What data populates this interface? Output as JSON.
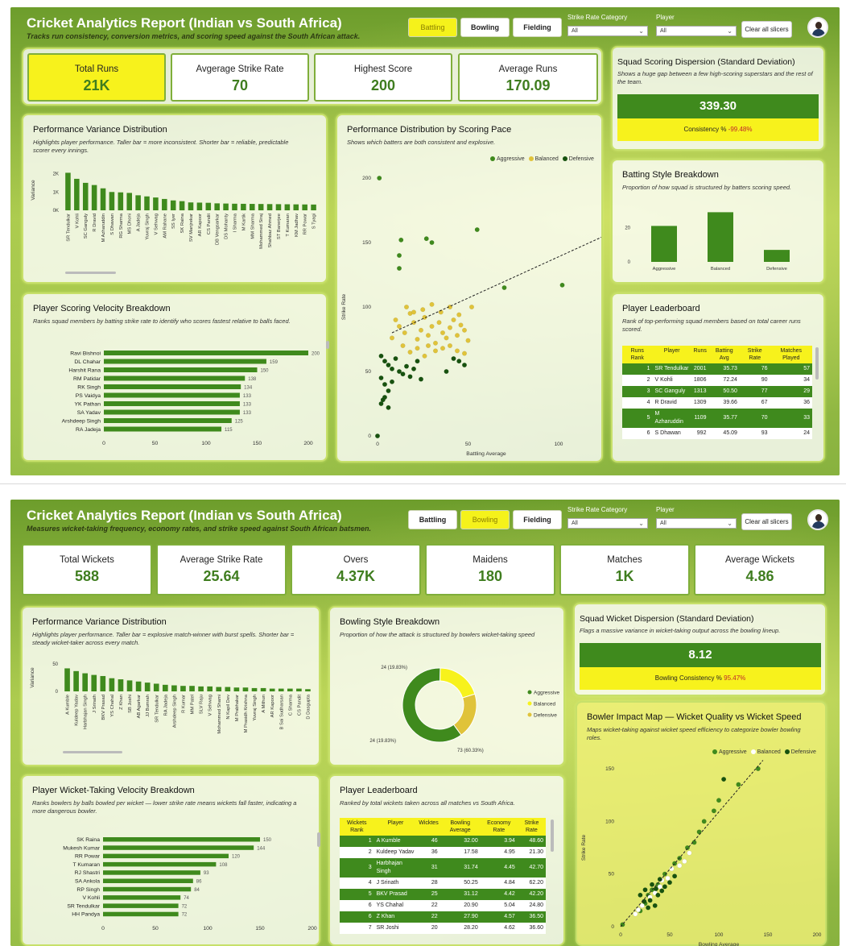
{
  "common": {
    "title": "Cricket Analytics Report (Indian vs South Africa)",
    "tabs": [
      "Battling",
      "Bowling",
      "Fielding"
    ],
    "slicer1_label": "Strike Rate Category",
    "slicer2_label": "Player",
    "slicer_value": "All",
    "clear_label": "Clear all slicers",
    "colors": {
      "green": "#3f8a1d",
      "yellow": "#f7f21c",
      "dark": "#17520f",
      "gold": "#e0c33a"
    }
  },
  "batting": {
    "subtitle": "Tracks run consistency, conversion metrics, and scoring speed against the South African attack.",
    "active_tab": "Battling",
    "kpis": [
      {
        "label": "Total Runs",
        "value": "21K"
      },
      {
        "label": "Avgerage Strike Rate",
        "value": "70"
      },
      {
        "label": "Highest Score",
        "value": "200"
      },
      {
        "label": "Average Runs",
        "value": "170.09"
      }
    ],
    "dispersion": {
      "title": "Squad Scoring Dispersion (Standard Deviation)",
      "subtitle": "Shows a huge gap between a few high-scoring superstars and the rest of the team.",
      "value": "339.30",
      "sub_label": "Consistency %",
      "sub_value": "-99.48%"
    },
    "variance": {
      "title": "Performance Variance Distribution",
      "subtitle": "Highlights player performance. Taller bar = more inconsistent. Shorter bar = reliable, predictable scorer every innings.",
      "ylabel": "Variance",
      "yticks": [
        "2K",
        "1K",
        "0K"
      ]
    },
    "velocity": {
      "title": "Player Scoring Velocity Breakdown",
      "subtitle": "Ranks squad members by batting strike rate to identify who scores fastest relative to balls faced.",
      "xticks": [
        "0",
        "50",
        "100",
        "150",
        "200"
      ]
    },
    "scatter": {
      "title": "Performance Distribution by Scoring Pace",
      "subtitle": "Shows which batters are both consistent and explosive.",
      "xlabel": "Battling Average",
      "ylabel": "Strike Rate",
      "legend": [
        "Aggressive",
        "Balanced",
        "Defensive"
      ],
      "xticks": [
        "0",
        "50",
        "100"
      ],
      "yticks": [
        "200",
        "150",
        "100",
        "50",
        "0"
      ]
    },
    "style": {
      "title": "Batting Style Breakdown",
      "subtitle": "Proportion of how squad is structured by batters scoring speed.",
      "yticks": [
        "20",
        "0"
      ]
    },
    "leaderboard": {
      "title": "Player Leaderboard",
      "subtitle": "Rank of top-performing squad members based on total career runs scored.",
      "headers": [
        "Runs Rank",
        "Player",
        "Runs",
        "Batting Avg",
        "Strike Rate",
        "Matches Played"
      ],
      "rows": [
        [
          "1",
          "SR Tendulkar",
          "2001",
          "35.73",
          "76",
          "57"
        ],
        [
          "2",
          "V Kohli",
          "1806",
          "72.24",
          "90",
          "34"
        ],
        [
          "3",
          "SC Ganguly",
          "1313",
          "50.50",
          "77",
          "29"
        ],
        [
          "4",
          "R Dravid",
          "1309",
          "39.66",
          "67",
          "36"
        ],
        [
          "5",
          "M Azharuddin",
          "1109",
          "35.77",
          "70",
          "33"
        ],
        [
          "6",
          "S Dhawan",
          "992",
          "45.09",
          "93",
          "24"
        ]
      ]
    }
  },
  "bowling": {
    "subtitle": "Measures wicket-taking frequency, economy rates, and strike speed against South African batsmen.",
    "active_tab": "Bowling",
    "kpis": [
      {
        "label": "Total Wickets",
        "value": "588"
      },
      {
        "label": "Average Strike Rate",
        "value": "25.64"
      },
      {
        "label": "Overs",
        "value": "4.37K"
      },
      {
        "label": "Maidens",
        "value": "180"
      },
      {
        "label": "Matches",
        "value": "1K"
      },
      {
        "label": "Average Wickets",
        "value": "4.86"
      }
    ],
    "dispersion": {
      "title": "Squad Wicket Dispersion (Standard Deviation)",
      "subtitle": "Flags a massive variance in wicket-taking output across the bowling lineup.",
      "value": "8.12",
      "sub_label": "Bowling Consistency %",
      "sub_value": "95.47%"
    },
    "variance": {
      "title": "Performance Variance Distribution",
      "subtitle": "Highlights player performance. Taller bar = explosive match-winner with burst spells. Shorter bar = steady wicket-taker across every match.",
      "ylabel": "Variance",
      "yticks": [
        "50",
        "0"
      ]
    },
    "velocity": {
      "title": "Player Wicket-Taking Velocity Breakdown",
      "subtitle": "Ranks bowlers by balls bowled per wicket — lower strike rate means wickets fall faster, indicating a more dangerous bowler.",
      "xticks": [
        "0",
        "50",
        "100",
        "150",
        "200"
      ]
    },
    "style": {
      "title": "Bowling Style Breakdown",
      "subtitle": "Proportion of how the attack is structured by bowlers wicket-taking speed",
      "legend": [
        "Aggressive",
        "Balanced",
        "Defensive"
      ],
      "labels": [
        "24 (19.83%)",
        "24 (19.83%)",
        "73 (60.33%)"
      ]
    },
    "impact": {
      "title": "Bowler Impact Map — Wicket Quality vs Wicket Speed",
      "subtitle": "Maps wicket-taking against wicket speed efficiency to categorize bowler bowling roles.",
      "xlabel": "Bowling Average",
      "ylabel": "Strike Rate",
      "legend": [
        "Aggressive",
        "Balanced",
        "Defensive"
      ],
      "xticks": [
        "0",
        "50",
        "100",
        "150",
        "200"
      ],
      "yticks": [
        "150",
        "100",
        "50",
        "0"
      ]
    },
    "leaderboard": {
      "title": "Player Leaderboard",
      "subtitle": "Ranked by total wickets taken across all matches vs South Africa.",
      "headers": [
        "Wickets Rank",
        "Player",
        "Wicktes",
        "Bowling Average",
        "Economy Rate",
        "Strike Rate"
      ],
      "rows": [
        [
          "1",
          "A Kumble",
          "46",
          "32.00",
          "3.94",
          "48.60"
        ],
        [
          "2",
          "Kuldeep Yadav",
          "36",
          "17.58",
          "4.95",
          "21.30"
        ],
        [
          "3",
          "Harbhajan Singh",
          "31",
          "31.74",
          "4.45",
          "42.70"
        ],
        [
          "4",
          "J Srinath",
          "28",
          "50.25",
          "4.84",
          "62.20"
        ],
        [
          "5",
          "BKV Prasad",
          "25",
          "31.12",
          "4.42",
          "42.20"
        ],
        [
          "6",
          "YS Chahal",
          "22",
          "20.90",
          "5.04",
          "24.80"
        ],
        [
          "6",
          "Z Khan",
          "22",
          "27.90",
          "4.57",
          "36.50"
        ],
        [
          "7",
          "SR Joshi",
          "20",
          "28.20",
          "4.62",
          "36.60"
        ]
      ]
    }
  },
  "chart_data": [
    {
      "type": "bar",
      "title": "Performance Variance Distribution",
      "ylabel": "Variance",
      "categories": [
        "SR Tendulkar",
        "V Kohli",
        "SC Ganguly",
        "R Dravid",
        "M Azharuddin",
        "S Dhawan",
        "RG Sharma",
        "MS Dhoni",
        "A Jadeja",
        "Yuvraj Singh",
        "V Sehwag",
        "AM Rahane",
        "SS Iyer",
        "SK Raina",
        "SV Manjrekar",
        "AR Kapoor",
        "CS Pandit",
        "DB Vengsarkar",
        "DS Mohanty",
        "I Sharma",
        "M Kartik",
        "MM Sharma",
        "Mohammed Siraj",
        "Shahbaz Ahmed",
        "ST Banerjee",
        "T Kumaran",
        "KM Jadhav",
        "RR Powar",
        "S Tyagi"
      ],
      "values": [
        2050,
        1720,
        1500,
        1380,
        1200,
        1000,
        980,
        950,
        820,
        760,
        700,
        620,
        540,
        500,
        430,
        420,
        410,
        380,
        370,
        360,
        355,
        350,
        345,
        340,
        335,
        330,
        325,
        320,
        315
      ],
      "ylim": [
        0,
        2200
      ]
    },
    {
      "type": "bar",
      "title": "Player Scoring Velocity Breakdown",
      "categories": [
        "Ravi Bishnoi",
        "DL Chahar",
        "Harshit Rana",
        "RM Patidar",
        "RK Singh",
        "PS Vaidya",
        "YK Pathan",
        "SA Yadav",
        "Arshdeep Singh",
        "RA Jadeja"
      ],
      "values": [
        200,
        159,
        150,
        138,
        134,
        133,
        133,
        133,
        125,
        115
      ],
      "xlim": [
        0,
        200
      ]
    },
    {
      "type": "scatter",
      "title": "Performance Distribution by Scoring Pace",
      "xlabel": "Battling Average",
      "ylabel": "Strike Rate",
      "xlim": [
        0,
        120
      ],
      "ylim": [
        0,
        200
      ],
      "series": [
        {
          "name": "Aggressive",
          "points": [
            [
              1,
              200
            ],
            [
              13,
              152
            ],
            [
              27,
              153
            ],
            [
              30,
              150
            ],
            [
              12,
              140
            ],
            [
              12,
              130
            ],
            [
              55,
              160
            ],
            [
              102,
              117
            ],
            [
              70,
              115
            ]
          ]
        },
        {
          "name": "Balanced",
          "points": [
            [
              10,
              90
            ],
            [
              12,
              85
            ],
            [
              15,
              80
            ],
            [
              18,
              95
            ],
            [
              20,
              88
            ],
            [
              22,
              75
            ],
            [
              24,
              82
            ],
            [
              26,
              92
            ],
            [
              28,
              78
            ],
            [
              30,
              85
            ],
            [
              32,
              72
            ],
            [
              34,
              88
            ],
            [
              36,
              80
            ],
            [
              38,
              76
            ],
            [
              40,
              84
            ],
            [
              42,
              90
            ],
            [
              44,
              78
            ],
            [
              46,
              86
            ],
            [
              48,
              82
            ],
            [
              50,
              74
            ],
            [
              16,
              100
            ],
            [
              20,
              96
            ],
            [
              25,
              98
            ],
            [
              30,
              102
            ],
            [
              35,
              96
            ],
            [
              40,
              100
            ],
            [
              45,
              94
            ],
            [
              52,
              100
            ],
            [
              8,
              76
            ],
            [
              14,
              70
            ],
            [
              18,
              65
            ],
            [
              22,
              68
            ],
            [
              26,
              62
            ],
            [
              28,
              70
            ],
            [
              32,
              66
            ],
            [
              36,
              68
            ],
            [
              40,
              70
            ],
            [
              44,
              66
            ],
            [
              48,
              64
            ]
          ]
        },
        {
          "name": "Defensive",
          "points": [
            [
              0,
              0
            ],
            [
              2,
              62
            ],
            [
              4,
              58
            ],
            [
              6,
              55
            ],
            [
              8,
              52
            ],
            [
              10,
              60
            ],
            [
              12,
              50
            ],
            [
              14,
              48
            ],
            [
              16,
              54
            ],
            [
              18,
              46
            ],
            [
              20,
              52
            ],
            [
              22,
              58
            ],
            [
              24,
              44
            ],
            [
              2,
              45
            ],
            [
              4,
              40
            ],
            [
              6,
              35
            ],
            [
              8,
              42
            ],
            [
              2,
              25
            ],
            [
              3,
              28
            ],
            [
              4,
              30
            ],
            [
              6,
              22
            ],
            [
              45,
              58
            ],
            [
              48,
              55
            ],
            [
              42,
              60
            ],
            [
              38,
              50
            ]
          ]
        }
      ]
    },
    {
      "type": "bar",
      "title": "Batting Style Breakdown",
      "categories": [
        "Aggressive",
        "Balanced",
        "Defensive"
      ],
      "values": [
        21,
        29,
        7
      ],
      "ylim": [
        0,
        32
      ]
    },
    {
      "type": "bar",
      "title": "Performance Variance Distribution",
      "ylabel": "Variance",
      "categories": [
        "A Kumble",
        "Kuldeep Yadav",
        "Harbhajan Singh",
        "J Srinath",
        "BKV Prasad",
        "YS Chahal",
        "Z Khan",
        "SB Joshi",
        "AB Agarkar",
        "JJ Bumrah",
        "SR Tendulkar",
        "RA Jadeja",
        "Arshdeep Singh",
        "R Kumar",
        "MM Patel",
        "SLV Raju",
        "V Sehwag",
        "Mohammed Shami",
        "N Kapil Dev",
        "M Prabhakar",
        "M Prasidh Krishna",
        "Yuvraj Singh",
        "A Mithun",
        "AR Kapoor",
        "B Sai Sudharsan",
        "C Sharma",
        "CS Pandit",
        "D Dasgupta"
      ],
      "values": [
        42,
        37,
        33,
        30,
        28,
        24,
        22,
        20,
        18,
        16,
        14,
        12,
        11,
        10,
        10,
        9,
        9,
        8,
        8,
        7,
        7,
        6,
        6,
        5,
        5,
        5,
        5,
        4
      ],
      "ylim": [
        0,
        50
      ]
    },
    {
      "type": "bar",
      "title": "Player Wicket-Taking Velocity Breakdown",
      "categories": [
        "SK Raina",
        "Mukesh Kumar",
        "RR Powar",
        "T Kumaran",
        "RJ Shastri",
        "SA Ankola",
        "RP Singh",
        "V Kohli",
        "SR Tendulkar",
        "HH Pandya"
      ],
      "values": [
        150,
        144,
        120,
        108,
        93,
        86,
        84,
        74,
        72,
        72
      ],
      "xlim": [
        0,
        200
      ]
    },
    {
      "type": "pie",
      "title": "Bowling Style Breakdown",
      "categories": [
        "Aggressive",
        "Balanced",
        "Defensive"
      ],
      "values": [
        73,
        24,
        24
      ]
    },
    {
      "type": "scatter",
      "title": "Bowler Impact Map — Wicket Quality vs Wicket Speed",
      "xlabel": "Bowling Average",
      "ylabel": "Strike Rate",
      "xlim": [
        0,
        200
      ],
      "ylim": [
        0,
        150
      ],
      "series": [
        {
          "name": "Aggressive",
          "points": [
            [
              2,
              2
            ],
            [
              20,
              15
            ],
            [
              25,
              22
            ],
            [
              28,
              30
            ],
            [
              32,
              35
            ],
            [
              38,
              40
            ],
            [
              45,
              50
            ],
            [
              55,
              60
            ],
            [
              60,
              65
            ],
            [
              68,
              75
            ],
            [
              75,
              80
            ],
            [
              80,
              90
            ],
            [
              85,
              100
            ],
            [
              95,
              110
            ],
            [
              100,
              120
            ],
            [
              120,
              135
            ],
            [
              140,
              150
            ]
          ]
        },
        {
          "name": "Balanced",
          "points": [
            [
              15,
              12
            ],
            [
              18,
              16
            ],
            [
              22,
              20
            ],
            [
              30,
              28
            ],
            [
              35,
              32
            ],
            [
              40,
              38
            ],
            [
              42,
              44
            ],
            [
              48,
              46
            ],
            [
              52,
              55
            ],
            [
              60,
              58
            ],
            [
              65,
              62
            ],
            [
              70,
              70
            ]
          ]
        },
        {
          "name": "Defensive",
          "points": [
            [
              20,
              30
            ],
            [
              25,
              35
            ],
            [
              30,
              25
            ],
            [
              32,
              40
            ],
            [
              36,
              36
            ],
            [
              40,
              45
            ],
            [
              45,
              38
            ],
            [
              50,
              42
            ],
            [
              55,
              48
            ],
            [
              35,
              20
            ],
            [
              28,
              18
            ],
            [
              24,
              24
            ],
            [
              38,
              30
            ],
            [
              42,
              34
            ],
            [
              105,
              140
            ]
          ]
        }
      ]
    }
  ]
}
